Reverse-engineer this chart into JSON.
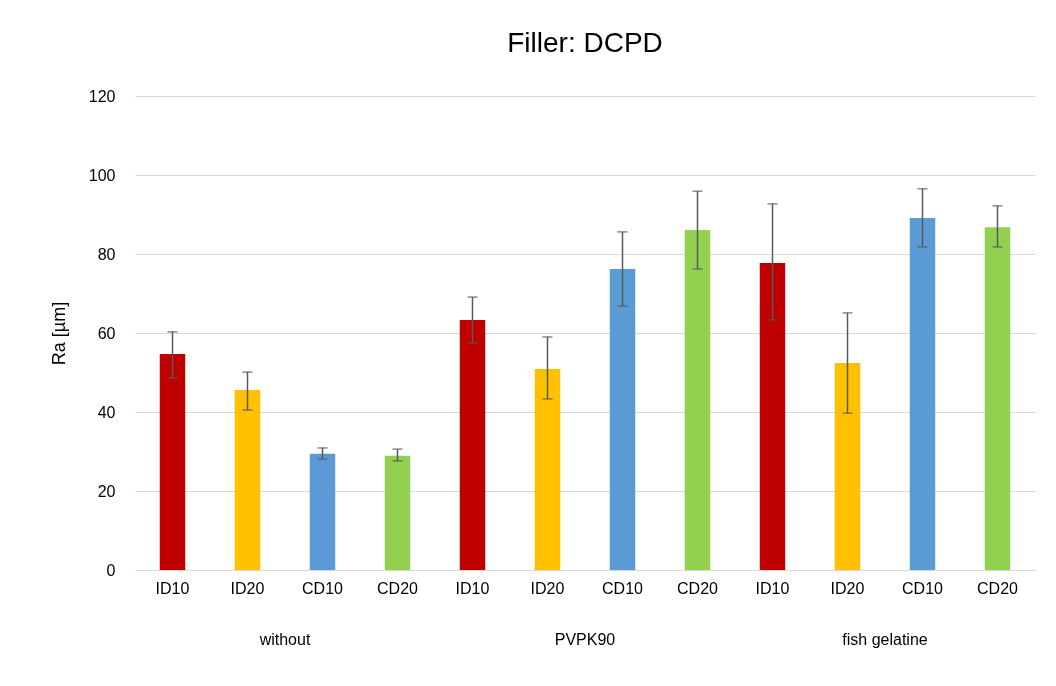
{
  "chart_data": {
    "type": "bar",
    "title": "Filler: DCPD",
    "ylabel": "Ra [µm]",
    "categories": [
      "ID10",
      "ID20",
      "CD10",
      "CD20",
      "ID10",
      "ID20",
      "CD10",
      "CD20",
      "ID10",
      "ID20",
      "CD10",
      "CD20"
    ],
    "values": [
      54.7,
      45.6,
      29.4,
      28.9,
      63.3,
      50.9,
      76.2,
      86.1,
      77.7,
      52.4,
      89.1,
      86.8
    ],
    "colors": [
      "#c00000",
      "#ffc000",
      "#5b9bd5",
      "#92d050",
      "#c00000",
      "#ffc000",
      "#5b9bd5",
      "#92d050",
      "#c00000",
      "#ffc000",
      "#5b9bd5",
      "#92d050"
    ],
    "errors": [
      [
        48.6,
        60.3
      ],
      [
        40.5,
        50.1
      ],
      [
        28.1,
        30.9
      ],
      [
        27.6,
        30.6
      ],
      [
        57.5,
        69.1
      ],
      [
        43.3,
        59
      ],
      [
        66.8,
        85.6
      ],
      [
        76.2,
        95.9
      ],
      [
        63.3,
        92.7
      ],
      [
        39.7,
        65.1
      ],
      [
        81.8,
        96.5
      ],
      [
        81.8,
        92.2
      ]
    ],
    "annotations": [
      "without",
      "PVPK90",
      "fish gelatine"
    ],
    "ylim": [
      0,
      120
    ],
    "yticks": [
      0,
      20,
      40,
      60,
      80,
      100,
      120
    ],
    "grid": "y"
  }
}
